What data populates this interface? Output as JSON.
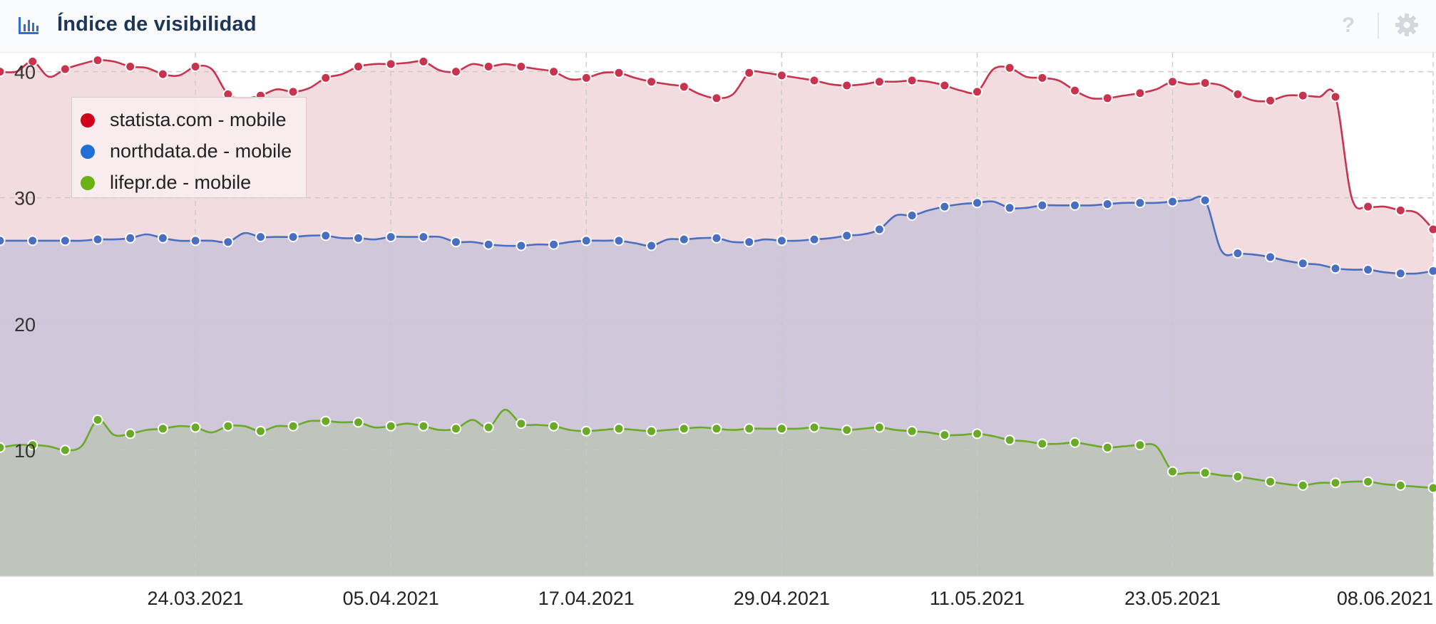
{
  "header": {
    "title": "Índice de visibilidad",
    "icon": "bar-chart-icon",
    "help_icon": "help-icon",
    "help_label": "?",
    "settings_icon": "gear-icon"
  },
  "colors": {
    "statista": "#c8334d",
    "northdata": "#4a6fc0",
    "lifepr": "#6aaa28",
    "legend_statista": "#d0021b",
    "legend_northdata": "#1f6fd6",
    "legend_lifepr": "#6ab214",
    "fill_top": "#f2dce0",
    "fill_mid": "#d1c7da",
    "fill_bottom": "#bfc5bd",
    "title": "#1d3557",
    "grid": "#c8c8c8"
  },
  "chart_data": {
    "type": "area",
    "title": "",
    "xlabel": "",
    "ylabel": "",
    "ylim": [
      0,
      41.5
    ],
    "yticks": [
      "10",
      "20",
      "30",
      "40"
    ],
    "ytick_values": [
      10,
      20,
      30,
      40
    ],
    "xlim": [
      "2021-03-12",
      "2021-06-08"
    ],
    "xticks": [
      "24.03.2021",
      "05.04.2021",
      "17.04.2021",
      "29.04.2021",
      "11.05.2021",
      "23.05.2021",
      "08.06.2021"
    ],
    "xtick_dates": [
      "2021-03-24",
      "2021-04-05",
      "2021-04-17",
      "2021-04-29",
      "2021-05-11",
      "2021-05-23",
      "2021-06-08"
    ],
    "grid": true,
    "legend_position": "top-left",
    "x": [
      "2021-03-12",
      "2021-03-13",
      "2021-03-14",
      "2021-03-15",
      "2021-03-16",
      "2021-03-17",
      "2021-03-18",
      "2021-03-19",
      "2021-03-20",
      "2021-03-21",
      "2021-03-22",
      "2021-03-23",
      "2021-03-24",
      "2021-03-25",
      "2021-03-26",
      "2021-03-27",
      "2021-03-28",
      "2021-03-29",
      "2021-03-30",
      "2021-03-31",
      "2021-04-01",
      "2021-04-02",
      "2021-04-03",
      "2021-04-04",
      "2021-04-05",
      "2021-04-06",
      "2021-04-07",
      "2021-04-08",
      "2021-04-09",
      "2021-04-10",
      "2021-04-11",
      "2021-04-12",
      "2021-04-13",
      "2021-04-14",
      "2021-04-15",
      "2021-04-16",
      "2021-04-17",
      "2021-04-18",
      "2021-04-19",
      "2021-04-20",
      "2021-04-21",
      "2021-04-22",
      "2021-04-23",
      "2021-04-24",
      "2021-04-25",
      "2021-04-26",
      "2021-04-27",
      "2021-04-28",
      "2021-04-29",
      "2021-04-30",
      "2021-05-01",
      "2021-05-02",
      "2021-05-03",
      "2021-05-04",
      "2021-05-05",
      "2021-05-06",
      "2021-05-07",
      "2021-05-08",
      "2021-05-09",
      "2021-05-10",
      "2021-05-11",
      "2021-05-12",
      "2021-05-13",
      "2021-05-14",
      "2021-05-15",
      "2021-05-16",
      "2021-05-17",
      "2021-05-18",
      "2021-05-19",
      "2021-05-20",
      "2021-05-21",
      "2021-05-22",
      "2021-05-23",
      "2021-05-24",
      "2021-05-25",
      "2021-05-26",
      "2021-05-27",
      "2021-05-28",
      "2021-05-29",
      "2021-05-30",
      "2021-05-31",
      "2021-06-01",
      "2021-06-02",
      "2021-06-03",
      "2021-06-04",
      "2021-06-05",
      "2021-06-06",
      "2021-06-07",
      "2021-06-08"
    ],
    "series": [
      {
        "name": "statista.com - mobile",
        "color": "#c8334d",
        "values": [
          40,
          40,
          40.8,
          39.6,
          40.2,
          40.6,
          40.9,
          40.8,
          40.4,
          40.3,
          39.8,
          39.7,
          40.4,
          40.2,
          38.2,
          37.9,
          38.1,
          38.6,
          38.4,
          38.7,
          39.5,
          39.8,
          40.4,
          40.6,
          40.6,
          40.7,
          40.8,
          40.1,
          40.0,
          40.6,
          40.4,
          40.6,
          40.4,
          40.2,
          40.0,
          39.4,
          39.5,
          39.9,
          39.9,
          39.5,
          39.2,
          39.0,
          38.8,
          38.2,
          37.9,
          38.2,
          39.9,
          39.9,
          39.7,
          39.5,
          39.3,
          39.0,
          38.9,
          39.0,
          39.2,
          39.2,
          39.3,
          39.2,
          38.9,
          38.5,
          38.4,
          40.2,
          40.3,
          39.6,
          39.5,
          39.3,
          38.5,
          37.9,
          37.9,
          38.1,
          38.3,
          38.6,
          39.2,
          39.0,
          39.1,
          38.9,
          38.2,
          37.7,
          37.7,
          38.1,
          38.1,
          38.0,
          38.0,
          30.0,
          29.3,
          29.3,
          29.0,
          28.8,
          27.5
        ]
      },
      {
        "name": "northdata.de - mobile",
        "color": "#4a6fc0",
        "values": [
          26.6,
          26.6,
          26.6,
          26.6,
          26.6,
          26.6,
          26.7,
          26.7,
          26.8,
          27.1,
          26.8,
          26.6,
          26.6,
          26.6,
          26.5,
          27.2,
          26.9,
          26.9,
          26.9,
          27.0,
          27.0,
          26.8,
          26.8,
          26.7,
          26.9,
          26.9,
          26.9,
          26.9,
          26.5,
          26.5,
          26.3,
          26.2,
          26.2,
          26.3,
          26.3,
          26.5,
          26.6,
          26.6,
          26.6,
          26.4,
          26.2,
          26.7,
          26.7,
          26.8,
          26.8,
          26.5,
          26.5,
          26.7,
          26.6,
          26.6,
          26.7,
          26.8,
          27.0,
          27.1,
          27.5,
          28.6,
          28.6,
          29.0,
          29.3,
          29.5,
          29.6,
          29.7,
          29.2,
          29.2,
          29.4,
          29.4,
          29.4,
          29.4,
          29.5,
          29.6,
          29.6,
          29.6,
          29.7,
          29.8,
          29.8,
          25.8,
          25.6,
          25.5,
          25.3,
          25.0,
          24.8,
          24.7,
          24.4,
          24.3,
          24.3,
          24.1,
          24.0,
          24.0,
          24.2
        ]
      },
      {
        "name": "lifepr.de - mobile",
        "color": "#6aaa28",
        "values": [
          10.2,
          10.4,
          10.4,
          10.3,
          10.0,
          10.3,
          12.4,
          11.2,
          11.3,
          11.6,
          11.7,
          11.9,
          11.8,
          11.4,
          11.9,
          11.9,
          11.5,
          11.9,
          11.9,
          12.3,
          12.3,
          12.2,
          12.2,
          11.8,
          11.9,
          12.1,
          11.9,
          11.6,
          11.7,
          12.4,
          11.8,
          13.2,
          12.1,
          12.0,
          11.9,
          11.6,
          11.5,
          11.6,
          11.7,
          11.6,
          11.5,
          11.6,
          11.7,
          11.8,
          11.7,
          11.6,
          11.7,
          11.7,
          11.7,
          11.7,
          11.8,
          11.7,
          11.6,
          11.7,
          11.8,
          11.6,
          11.5,
          11.4,
          11.2,
          11.2,
          11.3,
          11.1,
          10.8,
          10.7,
          10.5,
          10.5,
          10.6,
          10.4,
          10.2,
          10.3,
          10.4,
          10.3,
          8.3,
          8.2,
          8.2,
          8.0,
          7.9,
          7.7,
          7.5,
          7.3,
          7.2,
          7.4,
          7.4,
          7.5,
          7.5,
          7.3,
          7.2,
          7.1,
          7.0
        ]
      }
    ]
  }
}
